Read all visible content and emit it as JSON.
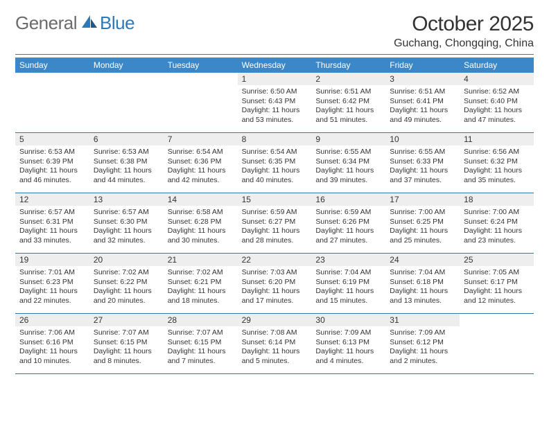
{
  "logo": {
    "text1": "General",
    "text2": "Blue"
  },
  "title": "October 2025",
  "location": "Guchang, Chongqing, China",
  "colors": {
    "brand_blue": "#3c87c7",
    "rule_blue": "#2f78b7",
    "band_gray": "#eeeeee",
    "text": "#333333",
    "logo_gray": "#6b6b6b"
  },
  "weekdays": [
    "Sunday",
    "Monday",
    "Tuesday",
    "Wednesday",
    "Thursday",
    "Friday",
    "Saturday"
  ],
  "weeks": [
    [
      {
        "n": "",
        "sunrise": "",
        "sunset": "",
        "daylight": ""
      },
      {
        "n": "",
        "sunrise": "",
        "sunset": "",
        "daylight": ""
      },
      {
        "n": "",
        "sunrise": "",
        "sunset": "",
        "daylight": ""
      },
      {
        "n": "1",
        "sunrise": "Sunrise: 6:50 AM",
        "sunset": "Sunset: 6:43 PM",
        "daylight": "Daylight: 11 hours and 53 minutes."
      },
      {
        "n": "2",
        "sunrise": "Sunrise: 6:51 AM",
        "sunset": "Sunset: 6:42 PM",
        "daylight": "Daylight: 11 hours and 51 minutes."
      },
      {
        "n": "3",
        "sunrise": "Sunrise: 6:51 AM",
        "sunset": "Sunset: 6:41 PM",
        "daylight": "Daylight: 11 hours and 49 minutes."
      },
      {
        "n": "4",
        "sunrise": "Sunrise: 6:52 AM",
        "sunset": "Sunset: 6:40 PM",
        "daylight": "Daylight: 11 hours and 47 minutes."
      }
    ],
    [
      {
        "n": "5",
        "sunrise": "Sunrise: 6:53 AM",
        "sunset": "Sunset: 6:39 PM",
        "daylight": "Daylight: 11 hours and 46 minutes."
      },
      {
        "n": "6",
        "sunrise": "Sunrise: 6:53 AM",
        "sunset": "Sunset: 6:38 PM",
        "daylight": "Daylight: 11 hours and 44 minutes."
      },
      {
        "n": "7",
        "sunrise": "Sunrise: 6:54 AM",
        "sunset": "Sunset: 6:36 PM",
        "daylight": "Daylight: 11 hours and 42 minutes."
      },
      {
        "n": "8",
        "sunrise": "Sunrise: 6:54 AM",
        "sunset": "Sunset: 6:35 PM",
        "daylight": "Daylight: 11 hours and 40 minutes."
      },
      {
        "n": "9",
        "sunrise": "Sunrise: 6:55 AM",
        "sunset": "Sunset: 6:34 PM",
        "daylight": "Daylight: 11 hours and 39 minutes."
      },
      {
        "n": "10",
        "sunrise": "Sunrise: 6:55 AM",
        "sunset": "Sunset: 6:33 PM",
        "daylight": "Daylight: 11 hours and 37 minutes."
      },
      {
        "n": "11",
        "sunrise": "Sunrise: 6:56 AM",
        "sunset": "Sunset: 6:32 PM",
        "daylight": "Daylight: 11 hours and 35 minutes."
      }
    ],
    [
      {
        "n": "12",
        "sunrise": "Sunrise: 6:57 AM",
        "sunset": "Sunset: 6:31 PM",
        "daylight": "Daylight: 11 hours and 33 minutes."
      },
      {
        "n": "13",
        "sunrise": "Sunrise: 6:57 AM",
        "sunset": "Sunset: 6:30 PM",
        "daylight": "Daylight: 11 hours and 32 minutes."
      },
      {
        "n": "14",
        "sunrise": "Sunrise: 6:58 AM",
        "sunset": "Sunset: 6:28 PM",
        "daylight": "Daylight: 11 hours and 30 minutes."
      },
      {
        "n": "15",
        "sunrise": "Sunrise: 6:59 AM",
        "sunset": "Sunset: 6:27 PM",
        "daylight": "Daylight: 11 hours and 28 minutes."
      },
      {
        "n": "16",
        "sunrise": "Sunrise: 6:59 AM",
        "sunset": "Sunset: 6:26 PM",
        "daylight": "Daylight: 11 hours and 27 minutes."
      },
      {
        "n": "17",
        "sunrise": "Sunrise: 7:00 AM",
        "sunset": "Sunset: 6:25 PM",
        "daylight": "Daylight: 11 hours and 25 minutes."
      },
      {
        "n": "18",
        "sunrise": "Sunrise: 7:00 AM",
        "sunset": "Sunset: 6:24 PM",
        "daylight": "Daylight: 11 hours and 23 minutes."
      }
    ],
    [
      {
        "n": "19",
        "sunrise": "Sunrise: 7:01 AM",
        "sunset": "Sunset: 6:23 PM",
        "daylight": "Daylight: 11 hours and 22 minutes."
      },
      {
        "n": "20",
        "sunrise": "Sunrise: 7:02 AM",
        "sunset": "Sunset: 6:22 PM",
        "daylight": "Daylight: 11 hours and 20 minutes."
      },
      {
        "n": "21",
        "sunrise": "Sunrise: 7:02 AM",
        "sunset": "Sunset: 6:21 PM",
        "daylight": "Daylight: 11 hours and 18 minutes."
      },
      {
        "n": "22",
        "sunrise": "Sunrise: 7:03 AM",
        "sunset": "Sunset: 6:20 PM",
        "daylight": "Daylight: 11 hours and 17 minutes."
      },
      {
        "n": "23",
        "sunrise": "Sunrise: 7:04 AM",
        "sunset": "Sunset: 6:19 PM",
        "daylight": "Daylight: 11 hours and 15 minutes."
      },
      {
        "n": "24",
        "sunrise": "Sunrise: 7:04 AM",
        "sunset": "Sunset: 6:18 PM",
        "daylight": "Daylight: 11 hours and 13 minutes."
      },
      {
        "n": "25",
        "sunrise": "Sunrise: 7:05 AM",
        "sunset": "Sunset: 6:17 PM",
        "daylight": "Daylight: 11 hours and 12 minutes."
      }
    ],
    [
      {
        "n": "26",
        "sunrise": "Sunrise: 7:06 AM",
        "sunset": "Sunset: 6:16 PM",
        "daylight": "Daylight: 11 hours and 10 minutes."
      },
      {
        "n": "27",
        "sunrise": "Sunrise: 7:07 AM",
        "sunset": "Sunset: 6:15 PM",
        "daylight": "Daylight: 11 hours and 8 minutes."
      },
      {
        "n": "28",
        "sunrise": "Sunrise: 7:07 AM",
        "sunset": "Sunset: 6:15 PM",
        "daylight": "Daylight: 11 hours and 7 minutes."
      },
      {
        "n": "29",
        "sunrise": "Sunrise: 7:08 AM",
        "sunset": "Sunset: 6:14 PM",
        "daylight": "Daylight: 11 hours and 5 minutes."
      },
      {
        "n": "30",
        "sunrise": "Sunrise: 7:09 AM",
        "sunset": "Sunset: 6:13 PM",
        "daylight": "Daylight: 11 hours and 4 minutes."
      },
      {
        "n": "31",
        "sunrise": "Sunrise: 7:09 AM",
        "sunset": "Sunset: 6:12 PM",
        "daylight": "Daylight: 11 hours and 2 minutes."
      },
      {
        "n": "",
        "sunrise": "",
        "sunset": "",
        "daylight": ""
      }
    ]
  ]
}
